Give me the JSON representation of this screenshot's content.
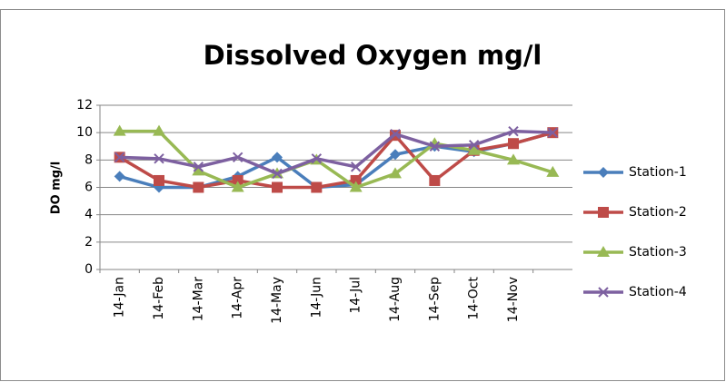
{
  "chart_data": {
    "type": "line",
    "title": "Dissolved Oxygen mg/l",
    "y_label": "DO mg/l",
    "categories": [
      "14-Jan",
      "14-Feb",
      "14-Mar",
      "14-Apr",
      "14-May",
      "14-Jun",
      "14-Jul",
      "14-Aug",
      "14-Sep",
      "14-Oct",
      "14-Nov",
      null
    ],
    "series": [
      {
        "name": "Station-1",
        "color": "#4a7ebb",
        "marker": "diamond",
        "values": [
          6.8,
          6.0,
          6.0,
          6.8,
          8.2,
          6.0,
          6.2,
          8.4,
          9.0,
          8.6,
          9.2,
          10.0
        ]
      },
      {
        "name": "Station-2",
        "color": "#be4b48",
        "marker": "square",
        "values": [
          8.2,
          6.5,
          6.0,
          6.5,
          6.0,
          6.0,
          6.5,
          9.8,
          6.5,
          8.7,
          9.2,
          10.0
        ]
      },
      {
        "name": "Station-3",
        "color": "#98b954",
        "marker": "triangle",
        "values": [
          10.1,
          10.1,
          7.2,
          6.0,
          7.0,
          8.0,
          6.0,
          7.0,
          9.2,
          8.7,
          8.0,
          7.1
        ]
      },
      {
        "name": "Station-4",
        "color": "#7d60a0",
        "marker": "x",
        "values": [
          8.2,
          8.1,
          7.5,
          8.2,
          7.0,
          8.1,
          7.5,
          9.9,
          9.0,
          9.1,
          10.1,
          10.0
        ]
      }
    ],
    "ylim": [
      0,
      12
    ],
    "yticks": [
      0,
      2,
      4,
      6,
      8,
      10,
      12
    ],
    "grid": true,
    "legend": "right"
  }
}
